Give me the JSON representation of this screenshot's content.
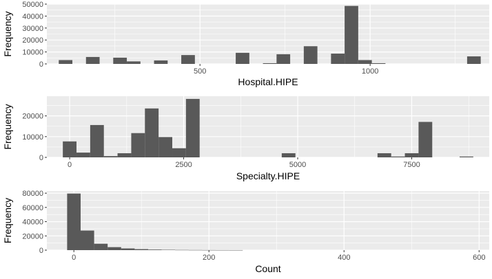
{
  "chart_data": [
    {
      "type": "bar",
      "title": "",
      "xlabel": "Hospital.HIPE",
      "ylabel": "Frequency",
      "xlim": [
        50,
        1350
      ],
      "ylim": [
        0,
        50000
      ],
      "x_ticks": [
        500,
        1000
      ],
      "y_ticks": [
        0,
        10000,
        20000,
        30000,
        40000,
        50000
      ],
      "x_minor_ticks": [
        250,
        750,
        1250
      ],
      "y_minor_ticks": [
        5000,
        15000,
        25000,
        35000,
        45000
      ],
      "grid": true,
      "bin_width": 40,
      "bins": [
        {
          "x": 105,
          "value": 3200
        },
        {
          "x": 185,
          "value": 5800
        },
        {
          "x": 265,
          "value": 5200
        },
        {
          "x": 305,
          "value": 2100
        },
        {
          "x": 385,
          "value": 2900
        },
        {
          "x": 465,
          "value": 7400
        },
        {
          "x": 625,
          "value": 9300
        },
        {
          "x": 705,
          "value": 600
        },
        {
          "x": 745,
          "value": 8100
        },
        {
          "x": 825,
          "value": 14800
        },
        {
          "x": 905,
          "value": 8600
        },
        {
          "x": 945,
          "value": 48500
        },
        {
          "x": 985,
          "value": 3200
        },
        {
          "x": 1025,
          "value": 600
        },
        {
          "x": 1305,
          "value": 6300
        }
      ]
    },
    {
      "type": "bar",
      "title": "",
      "xlabel": "Specialty.HIPE",
      "ylabel": "Frequency",
      "xlim": [
        -500,
        9200
      ],
      "ylim": [
        0,
        29500
      ],
      "x_ticks": [
        0,
        2500,
        5000,
        7500
      ],
      "y_ticks": [
        0,
        10000,
        20000
      ],
      "x_minor_ticks": [
        1250,
        3750,
        6250,
        8750
      ],
      "y_minor_ticks": [
        5000,
        15000,
        25000
      ],
      "grid": true,
      "bin_width": 300,
      "bins": [
        {
          "x": 0,
          "value": 7700
        },
        {
          "x": 300,
          "value": 2300
        },
        {
          "x": 600,
          "value": 15600
        },
        {
          "x": 900,
          "value": 600
        },
        {
          "x": 1200,
          "value": 2000
        },
        {
          "x": 1500,
          "value": 11700
        },
        {
          "x": 1800,
          "value": 23600
        },
        {
          "x": 2100,
          "value": 9800
        },
        {
          "x": 2400,
          "value": 4400
        },
        {
          "x": 2700,
          "value": 28200
        },
        {
          "x": 4800,
          "value": 2000
        },
        {
          "x": 6900,
          "value": 2000
        },
        {
          "x": 7200,
          "value": 400
        },
        {
          "x": 7500,
          "value": 2000
        },
        {
          "x": 7800,
          "value": 17100
        },
        {
          "x": 8700,
          "value": 400
        }
      ]
    },
    {
      "type": "bar",
      "title": "",
      "xlabel": "Count",
      "ylabel": "Frequency",
      "xlim": [
        -40,
        615
      ],
      "ylim": [
        0,
        83000
      ],
      "x_ticks": [
        0,
        200,
        400,
        600
      ],
      "y_ticks": [
        0,
        20000,
        40000,
        60000,
        80000
      ],
      "x_minor_ticks": [
        100,
        300,
        500
      ],
      "y_minor_ticks": [
        10000,
        30000,
        50000,
        70000
      ],
      "grid": true,
      "bin_width": 20,
      "bins": [
        {
          "x": 0,
          "value": 79500
        },
        {
          "x": 20,
          "value": 27500
        },
        {
          "x": 40,
          "value": 9000
        },
        {
          "x": 60,
          "value": 4200
        },
        {
          "x": 80,
          "value": 2400
        },
        {
          "x": 100,
          "value": 1400
        },
        {
          "x": 120,
          "value": 800
        },
        {
          "x": 140,
          "value": 500
        },
        {
          "x": 160,
          "value": 300
        },
        {
          "x": 180,
          "value": 200
        },
        {
          "x": 200,
          "value": 120
        },
        {
          "x": 220,
          "value": 80
        },
        {
          "x": 240,
          "value": 50
        }
      ]
    }
  ]
}
